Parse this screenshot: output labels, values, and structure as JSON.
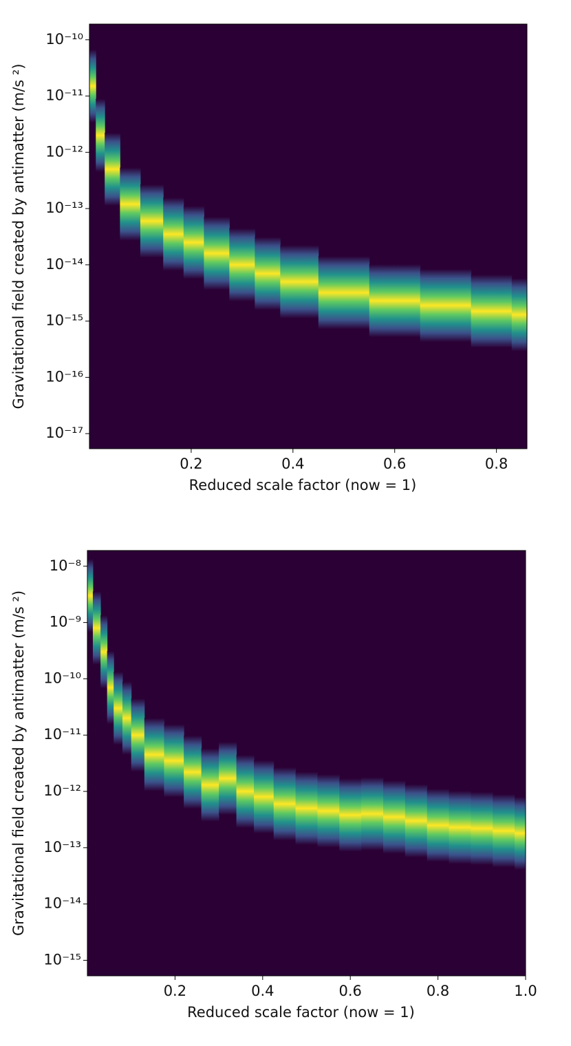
{
  "chart_data": [
    {
      "type": "density",
      "yscale": "log",
      "xlabel": "Reduced scale factor (now = 1)",
      "ylabel": "Gravitational field created by antimatter (m/s ²)",
      "xlim": [
        0,
        0.86
      ],
      "ylim": [
        1.9e-10,
        5.4e-18
      ],
      "xticks": [
        0.2,
        0.4,
        0.6,
        0.8
      ],
      "yticks": [
        {
          "value": 1e-10,
          "label": "10⁻¹⁰"
        },
        {
          "value": 1e-11,
          "label": "10⁻¹¹"
        },
        {
          "value": 1e-12,
          "label": "10⁻¹²"
        },
        {
          "value": 1e-13,
          "label": "10⁻¹³"
        },
        {
          "value": 1e-14,
          "label": "10⁻¹⁴"
        },
        {
          "value": 1e-15,
          "label": "10⁻¹⁵"
        },
        {
          "value": 1e-16,
          "label": "10⁻¹⁶"
        },
        {
          "value": 1e-17,
          "label": "10⁻¹⁷"
        }
      ],
      "x": [
        0.005,
        0.02,
        0.04,
        0.08,
        0.12,
        0.17,
        0.2,
        0.25,
        0.3,
        0.35,
        0.4,
        0.5,
        0.6,
        0.7,
        0.8,
        0.86
      ],
      "values": [
        1.5e-11,
        2e-12,
        5e-13,
        1.2e-13,
        6e-14,
        3.5e-14,
        2.5e-14,
        1.6e-14,
        1e-14,
        7e-15,
        5e-15,
        3.2e-15,
        2.3e-15,
        1.9e-15,
        1.5e-15,
        1.3e-15
      ],
      "background": "#2b0035",
      "colors": [
        "#2b0035",
        "#3b528b",
        "#21918c",
        "#5ec962",
        "#fde725"
      ]
    },
    {
      "type": "density",
      "yscale": "log",
      "xlabel": "Reduced scale factor (now = 1)",
      "ylabel": "Gravitational field created by antimatter  (m/s ²)",
      "xlim": [
        0,
        1.0
      ],
      "ylim": [
        1.9e-08,
        5.3e-16
      ],
      "xticks": [
        0.2,
        0.4,
        0.6,
        0.8,
        1.0
      ],
      "yticks": [
        {
          "value": 1e-08,
          "label": "10⁻⁸"
        },
        {
          "value": 1e-09,
          "label": "10⁻⁹"
        },
        {
          "value": 1e-10,
          "label": "10⁻¹⁰"
        },
        {
          "value": 1e-11,
          "label": "10⁻¹¹"
        },
        {
          "value": 1e-12,
          "label": "10⁻¹²"
        },
        {
          "value": 1e-13,
          "label": "10⁻¹³"
        },
        {
          "value": 1e-14,
          "label": "10⁻¹⁴"
        },
        {
          "value": 1e-15,
          "label": "10⁻¹⁵"
        }
      ],
      "x": [
        0.005,
        0.02,
        0.04,
        0.05,
        0.07,
        0.09,
        0.11,
        0.15,
        0.2,
        0.24,
        0.28,
        0.32,
        0.36,
        0.4,
        0.45,
        0.5,
        0.55,
        0.6,
        0.65,
        0.7,
        0.75,
        0.8,
        0.85,
        0.9,
        0.95,
        1.0
      ],
      "values": [
        3e-09,
        8e-10,
        3e-10,
        7e-11,
        3e-11,
        2e-11,
        1e-11,
        4.5e-12,
        3.5e-12,
        2.2e-12,
        1.3e-12,
        1.7e-12,
        1e-12,
        8e-13,
        6e-13,
        5e-13,
        4.5e-13,
        3.8e-13,
        4e-13,
        3.5e-13,
        3e-13,
        2.5e-13,
        2.3e-13,
        2.2e-13,
        2e-13,
        1.8e-13
      ],
      "background": "#2b0035",
      "colors": [
        "#2b0035",
        "#3b528b",
        "#21918c",
        "#5ec962",
        "#fde725"
      ]
    }
  ]
}
